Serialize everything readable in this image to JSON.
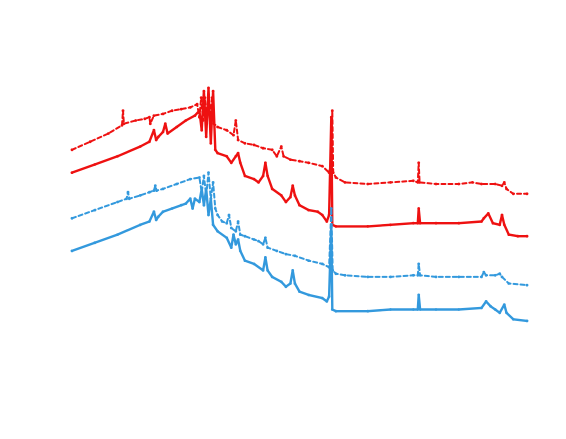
{
  "chart_data": {
    "type": "line",
    "title": "",
    "xlabel": "",
    "ylabel": "",
    "xlim": [
      0,
      100
    ],
    "ylim": [
      0,
      100
    ],
    "grid": false,
    "legend": "none",
    "series": [
      {
        "color": "#ee1111",
        "dash": "dashed",
        "points": [
          [
            0,
            70
          ],
          [
            4,
            72.5
          ],
          [
            8,
            75
          ],
          [
            11,
            77.5
          ],
          [
            11.2,
            82
          ],
          [
            11.4,
            78
          ],
          [
            14,
            79
          ],
          [
            16,
            79.5
          ],
          [
            17,
            80
          ],
          [
            17.2,
            78
          ],
          [
            18,
            80.5
          ],
          [
            20,
            81
          ],
          [
            22,
            82
          ],
          [
            24,
            82.5
          ],
          [
            26,
            83
          ],
          [
            27.5,
            84
          ],
          [
            28,
            80
          ],
          [
            28.4,
            86
          ],
          [
            28.8,
            79
          ],
          [
            29.2,
            86
          ],
          [
            29.6,
            78
          ],
          [
            30,
            87
          ],
          [
            30.4,
            80
          ],
          [
            30.8,
            86
          ],
          [
            31.2,
            78
          ],
          [
            32,
            77
          ],
          [
            34,
            76
          ],
          [
            35.5,
            74.5
          ],
          [
            36,
            79
          ],
          [
            36.5,
            73
          ],
          [
            38,
            72
          ],
          [
            40,
            71.5
          ],
          [
            42,
            70.5
          ],
          [
            44,
            70
          ],
          [
            45,
            68
          ],
          [
            46,
            71
          ],
          [
            46.5,
            68
          ],
          [
            48,
            67
          ],
          [
            50,
            66.5
          ],
          [
            52,
            66
          ],
          [
            55,
            65
          ],
          [
            56.5,
            63
          ],
          [
            57,
            66
          ],
          [
            57.2,
            82
          ],
          [
            57.4,
            63
          ],
          [
            58,
            61.5
          ],
          [
            60,
            60
          ],
          [
            65,
            59.5
          ],
          [
            70,
            60
          ],
          [
            75,
            60.5
          ],
          [
            76,
            60
          ],
          [
            76.2,
            66
          ],
          [
            76.4,
            60
          ],
          [
            80,
            59.5
          ],
          [
            85,
            59.5
          ],
          [
            88,
            60
          ],
          [
            90,
            59.5
          ],
          [
            93,
            59.5
          ],
          [
            94.5,
            59
          ],
          [
            95,
            60
          ],
          [
            95.5,
            58
          ],
          [
            97,
            56.5
          ],
          [
            100,
            56.5
          ]
        ]
      },
      {
        "color": "#ee1111",
        "dash": "solid",
        "points": [
          [
            0,
            63
          ],
          [
            5,
            65.5
          ],
          [
            10,
            68
          ],
          [
            15,
            71
          ],
          [
            17,
            72.5
          ],
          [
            18,
            76
          ],
          [
            18.5,
            73
          ],
          [
            19,
            74
          ],
          [
            20,
            75.5
          ],
          [
            20.5,
            78
          ],
          [
            21,
            75
          ],
          [
            23,
            77
          ],
          [
            25,
            79
          ],
          [
            27,
            80.5
          ],
          [
            28,
            82
          ],
          [
            28.5,
            76
          ],
          [
            29,
            88
          ],
          [
            29.5,
            74
          ],
          [
            30,
            89
          ],
          [
            30.5,
            72
          ],
          [
            31,
            88
          ],
          [
            31.5,
            70
          ],
          [
            32,
            69
          ],
          [
            34,
            68
          ],
          [
            35,
            66
          ],
          [
            36,
            68
          ],
          [
            36.5,
            69
          ],
          [
            37,
            66
          ],
          [
            38,
            62
          ],
          [
            40,
            61
          ],
          [
            41,
            60
          ],
          [
            42,
            62
          ],
          [
            42.5,
            66
          ],
          [
            43,
            62
          ],
          [
            44,
            58
          ],
          [
            46,
            56
          ],
          [
            47,
            54
          ],
          [
            48,
            55.5
          ],
          [
            48.5,
            59
          ],
          [
            49,
            56
          ],
          [
            50,
            53
          ],
          [
            52,
            51.5
          ],
          [
            54,
            51
          ],
          [
            55,
            50
          ],
          [
            56,
            48
          ],
          [
            56.5,
            50
          ],
          [
            57,
            80
          ],
          [
            57.2,
            47
          ],
          [
            58,
            46.5
          ],
          [
            65,
            46.5
          ],
          [
            70,
            47
          ],
          [
            75,
            47.5
          ],
          [
            76,
            47.5
          ],
          [
            76.2,
            52
          ],
          [
            76.5,
            47.5
          ],
          [
            80,
            47.5
          ],
          [
            85,
            47.5
          ],
          [
            90,
            48
          ],
          [
            90.5,
            49
          ],
          [
            91.5,
            50.5
          ],
          [
            92.5,
            47.5
          ],
          [
            94,
            47
          ],
          [
            94.5,
            50
          ],
          [
            95,
            47
          ],
          [
            96,
            44
          ],
          [
            98,
            43.5
          ],
          [
            100,
            43.5
          ]
        ]
      },
      {
        "color": "#3399dd",
        "dash": "dashed",
        "points": [
          [
            0,
            49
          ],
          [
            5,
            51.5
          ],
          [
            10,
            54
          ],
          [
            12,
            55
          ],
          [
            12.3,
            57
          ],
          [
            12.6,
            55
          ],
          [
            15,
            56
          ],
          [
            17,
            57
          ],
          [
            18,
            57.5
          ],
          [
            18.3,
            59
          ],
          [
            18.6,
            57.5
          ],
          [
            20,
            58
          ],
          [
            23,
            59.5
          ],
          [
            26,
            61
          ],
          [
            28,
            61.5
          ],
          [
            28.5,
            57
          ],
          [
            29,
            62
          ],
          [
            29.5,
            56
          ],
          [
            30,
            63
          ],
          [
            30.5,
            55
          ],
          [
            31,
            60
          ],
          [
            31.5,
            52
          ],
          [
            32,
            50
          ],
          [
            33,
            48
          ],
          [
            34,
            47.5
          ],
          [
            34.5,
            50
          ],
          [
            35,
            46
          ],
          [
            36,
            45
          ],
          [
            36.5,
            48
          ],
          [
            37,
            44
          ],
          [
            38,
            43.5
          ],
          [
            40,
            42.5
          ],
          [
            41,
            42
          ],
          [
            42,
            41
          ],
          [
            42.5,
            43
          ],
          [
            43,
            40
          ],
          [
            45,
            39
          ],
          [
            47,
            38
          ],
          [
            49,
            37.5
          ],
          [
            52,
            36
          ],
          [
            55,
            35
          ],
          [
            56.5,
            34
          ],
          [
            57,
            52
          ],
          [
            57.3,
            33
          ],
          [
            58,
            32
          ],
          [
            60,
            31.5
          ],
          [
            65,
            31
          ],
          [
            70,
            31
          ],
          [
            75,
            31.5
          ],
          [
            76,
            31.5
          ],
          [
            76.2,
            35
          ],
          [
            76.5,
            31.5
          ],
          [
            80,
            31
          ],
          [
            85,
            31
          ],
          [
            90,
            31
          ],
          [
            90.5,
            32.5
          ],
          [
            91,
            31.5
          ],
          [
            93,
            31.5
          ],
          [
            94,
            32
          ],
          [
            94.5,
            31
          ],
          [
            96,
            29
          ],
          [
            100,
            28.5
          ]
        ]
      },
      {
        "color": "#3399dd",
        "dash": "solid",
        "points": [
          [
            0,
            39
          ],
          [
            5,
            41.5
          ],
          [
            10,
            44
          ],
          [
            15,
            47
          ],
          [
            17,
            48
          ],
          [
            18,
            51
          ],
          [
            18.5,
            48.5
          ],
          [
            19,
            49.5
          ],
          [
            20,
            51
          ],
          [
            22,
            52
          ],
          [
            24,
            53
          ],
          [
            25,
            53.5
          ],
          [
            26,
            55
          ],
          [
            26.5,
            52
          ],
          [
            27,
            55
          ],
          [
            28,
            54
          ],
          [
            28.5,
            58
          ],
          [
            29,
            53
          ],
          [
            29.5,
            58
          ],
          [
            30,
            50
          ],
          [
            30.5,
            55
          ],
          [
            31,
            47
          ],
          [
            32,
            45
          ],
          [
            34,
            43
          ],
          [
            35,
            40
          ],
          [
            35.5,
            44
          ],
          [
            36,
            41
          ],
          [
            36.5,
            42.5
          ],
          [
            37,
            39
          ],
          [
            38,
            36
          ],
          [
            40,
            35
          ],
          [
            42,
            33
          ],
          [
            42.5,
            37
          ],
          [
            43,
            33
          ],
          [
            44,
            31
          ],
          [
            46,
            29.5
          ],
          [
            47,
            28
          ],
          [
            48,
            29
          ],
          [
            48.5,
            33
          ],
          [
            49,
            29
          ],
          [
            50,
            26.5
          ],
          [
            52,
            25.5
          ],
          [
            55,
            24.5
          ],
          [
            56,
            23.5
          ],
          [
            56.5,
            25
          ],
          [
            57,
            47
          ],
          [
            57.2,
            21
          ],
          [
            58,
            20.5
          ],
          [
            65,
            20.5
          ],
          [
            70,
            21
          ],
          [
            75,
            21
          ],
          [
            76,
            21
          ],
          [
            76.2,
            25.5
          ],
          [
            76.5,
            21
          ],
          [
            80,
            21
          ],
          [
            85,
            21
          ],
          [
            90,
            21.5
          ],
          [
            91,
            23.5
          ],
          [
            92,
            22
          ],
          [
            93,
            21
          ],
          [
            94,
            20
          ],
          [
            95,
            22.5
          ],
          [
            95.5,
            20
          ],
          [
            97,
            18
          ],
          [
            100,
            17.5
          ]
        ]
      }
    ]
  }
}
